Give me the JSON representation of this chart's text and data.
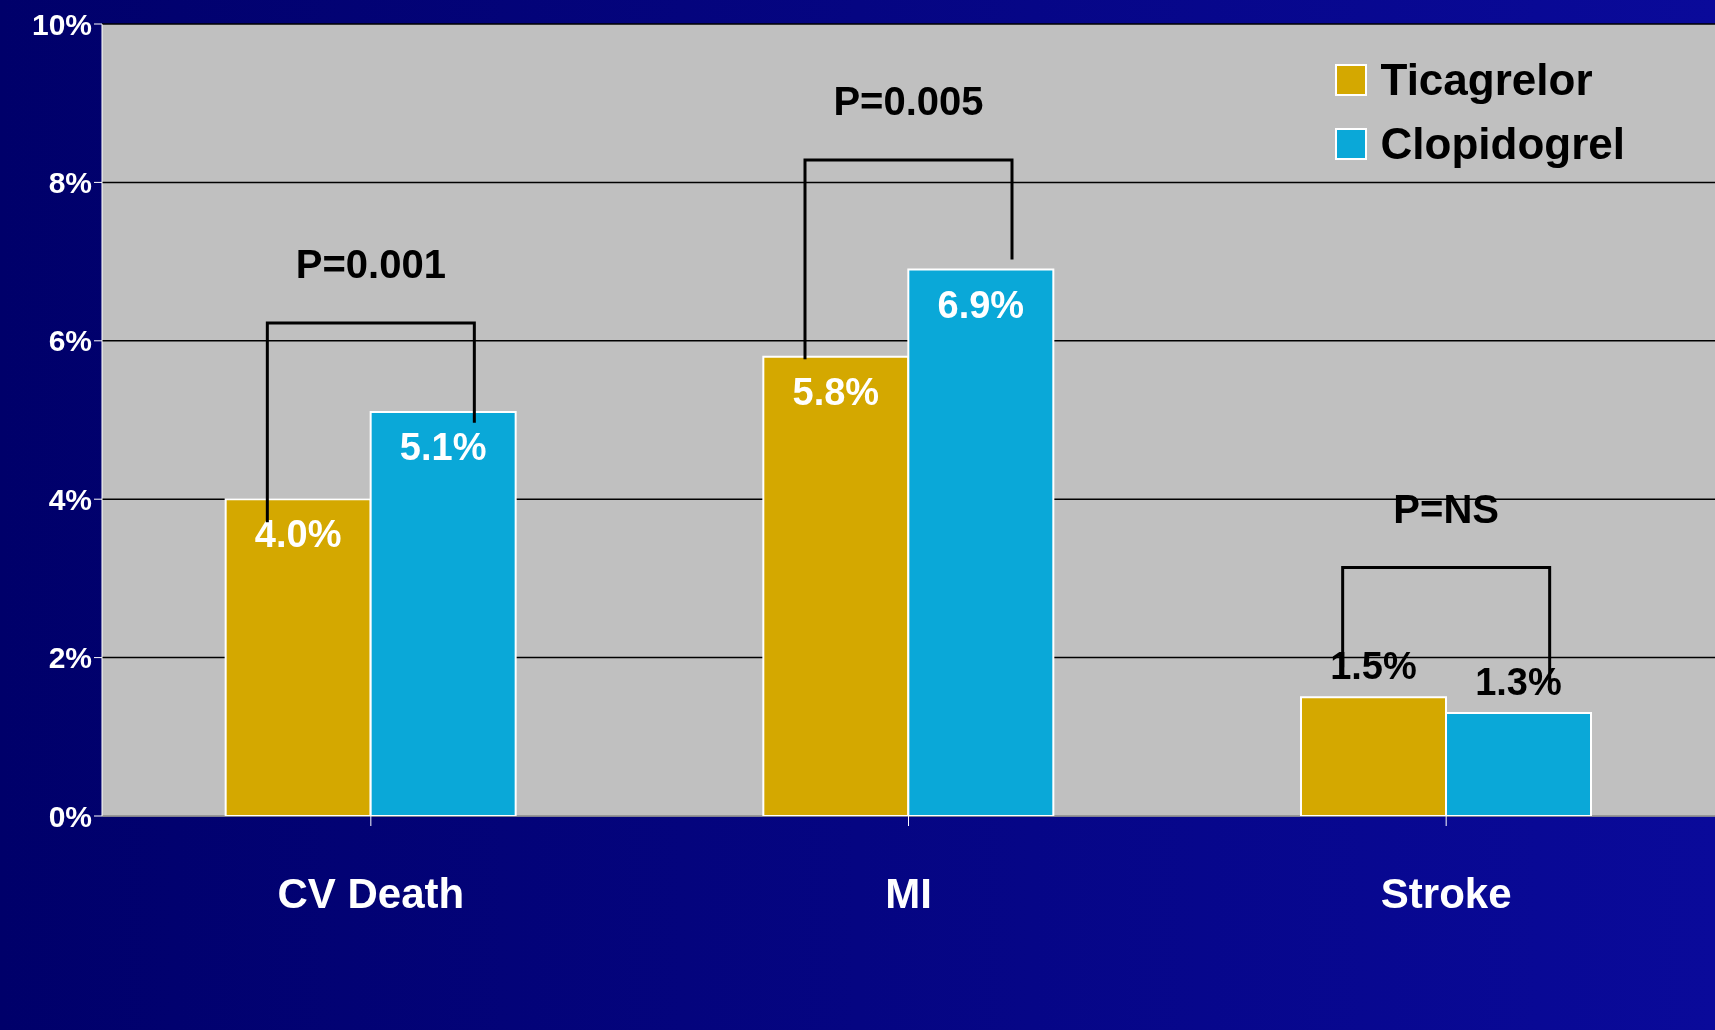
{
  "chart_data": {
    "type": "bar",
    "categories": [
      "CV Death",
      "MI",
      "Stroke"
    ],
    "series": [
      {
        "name": "Ticagrelor",
        "color": "#d4a800",
        "values": [
          4.0,
          5.8,
          1.5
        ],
        "value_labels": [
          "4.0%",
          "5.8%",
          "1.5%"
        ]
      },
      {
        "name": "Clopidogrel",
        "color": "#0aa8d8",
        "values": [
          5.1,
          6.9,
          1.3
        ],
        "value_labels": [
          "5.1%",
          "6.9%",
          "1.3%"
        ]
      }
    ],
    "ylim": [
      0,
      10
    ],
    "yticks": [
      {
        "value": 0,
        "label": "0%"
      },
      {
        "value": 2,
        "label": "2%"
      },
      {
        "value": 4,
        "label": "4%"
      },
      {
        "value": 6,
        "label": "6%"
      },
      {
        "value": 8,
        "label": "8%"
      },
      {
        "value": 10,
        "label": "10%"
      }
    ],
    "grid": "y",
    "legend": "top right",
    "annotations": [
      "P=0.001",
      "P=0.005",
      "P=NS"
    ]
  }
}
